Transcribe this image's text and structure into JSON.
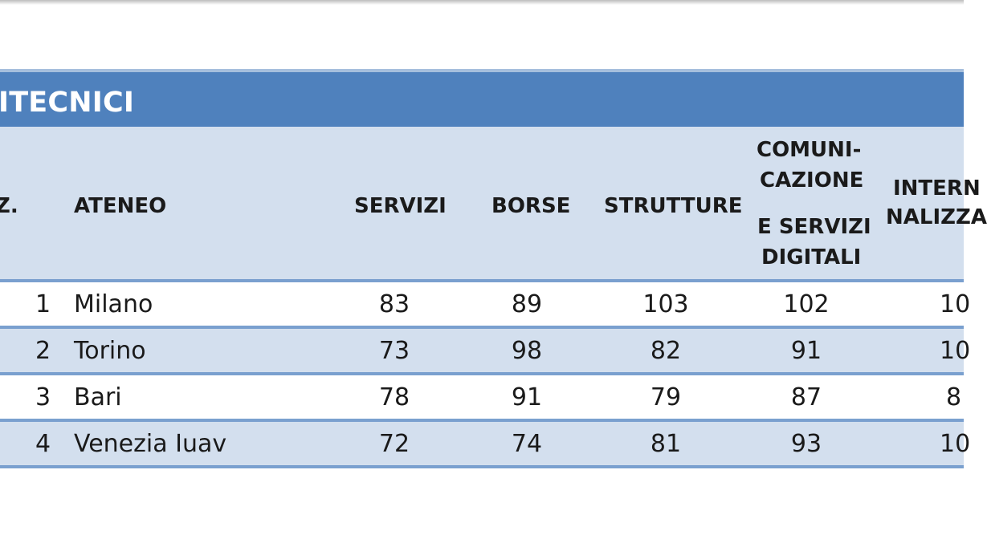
{
  "table": {
    "title": "ITECNICI",
    "headers": {
      "pos": "Z.",
      "ateneo": "ATENEO",
      "servizi": "SERVIZI",
      "borse": "BORSE",
      "strutture": "STRUTTURE",
      "comunicazione_line1": "COMUNI-",
      "comunicazione_line2": "CAZIONE",
      "comunicazione_line3": "E SERVIZI",
      "comunicazione_line4": "DIGITALI",
      "intern_line1": "INTERN",
      "intern_line2": "NALIZZA"
    },
    "rows": [
      {
        "pos": "1",
        "ateneo": "Milano",
        "servizi": "83",
        "borse": "89",
        "strutture": "103",
        "comunicazione": "102",
        "intern": "10"
      },
      {
        "pos": "2",
        "ateneo": "Torino",
        "servizi": "73",
        "borse": "98",
        "strutture": "82",
        "comunicazione": "91",
        "intern": "10"
      },
      {
        "pos": "3",
        "ateneo": "Bari",
        "servizi": "78",
        "borse": "91",
        "strutture": "79",
        "comunicazione": "87",
        "intern": "8"
      },
      {
        "pos": "4",
        "ateneo": "Venezia Iuav",
        "servizi": "72",
        "borse": "74",
        "strutture": "81",
        "comunicazione": "93",
        "intern": "10"
      }
    ]
  },
  "colors": {
    "title_bg": "#4f81bd",
    "band_bg": "#d3dfee",
    "divider": "#7aa0cf"
  }
}
